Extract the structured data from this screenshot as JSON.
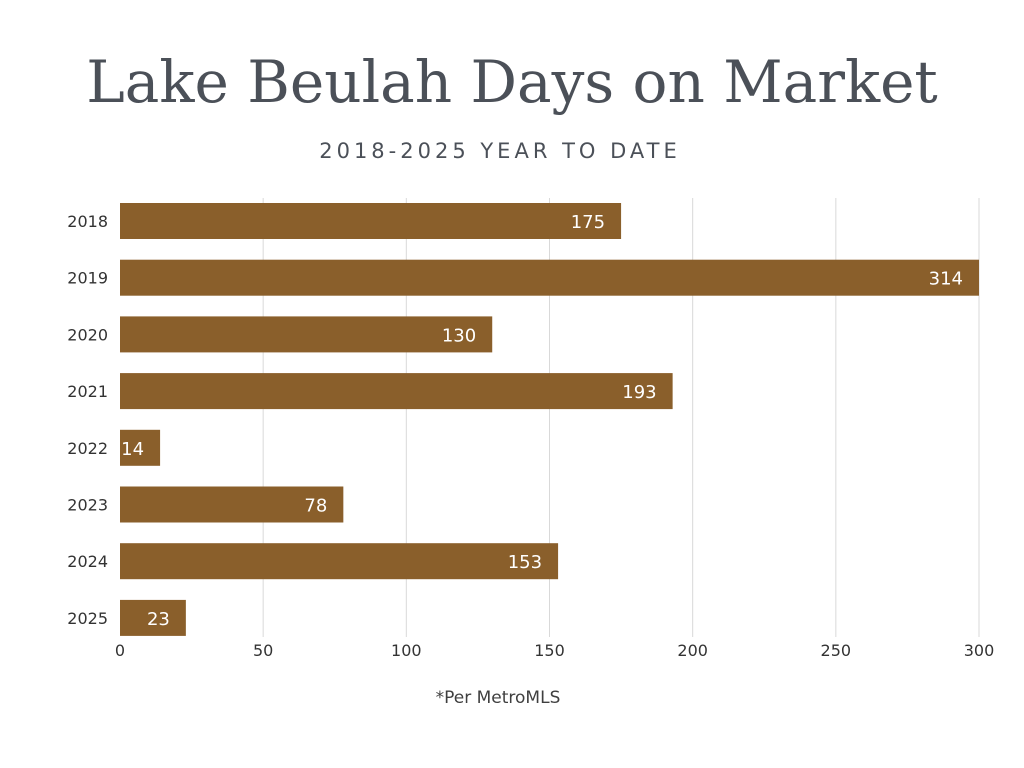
{
  "header": {
    "title": "Lake Beulah Days on Market",
    "subtitle": "2018-2025 YEAR TO DATE"
  },
  "footer": {
    "note": "*Per MetroMLS"
  },
  "colors": {
    "bar": "#8a5f2b",
    "bar_label": "#ffffff",
    "grid": "#d9d9d9",
    "axis_text": "#333333",
    "title_text": "#4b5058"
  },
  "chart_data": {
    "type": "bar",
    "orientation": "horizontal",
    "categories": [
      "2018",
      "2019",
      "2020",
      "2021",
      "2022",
      "2023",
      "2024",
      "2025"
    ],
    "values": [
      175,
      314,
      130,
      193,
      14,
      78,
      153,
      23
    ],
    "xlim": [
      0,
      300
    ],
    "x_ticks": [
      "0",
      "50",
      "100",
      "150",
      "200",
      "250",
      "300"
    ],
    "grid": true,
    "legend": "none",
    "data_labels": true,
    "bar_clipped_at_axis_max": true
  }
}
